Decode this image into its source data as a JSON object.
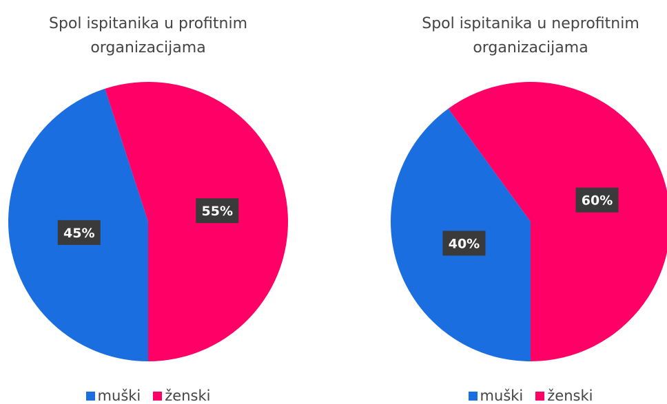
{
  "chart_data": [
    {
      "type": "pie",
      "title": "Spol ispitanika u profitnim organizacijama",
      "categories": [
        "muški",
        "ženski"
      ],
      "values": [
        45,
        55
      ],
      "value_labels": [
        "45%",
        "55%"
      ],
      "colors": [
        "#1a6ee0",
        "#ff0066"
      ]
    },
    {
      "type": "pie",
      "title": "Spol ispitanika u neprofitnim organizacijama",
      "categories": [
        "muški",
        "ženski"
      ],
      "values": [
        40,
        60
      ],
      "value_labels": [
        "40%",
        "60%"
      ],
      "colors": [
        "#1a6ee0",
        "#ff0066"
      ]
    }
  ]
}
